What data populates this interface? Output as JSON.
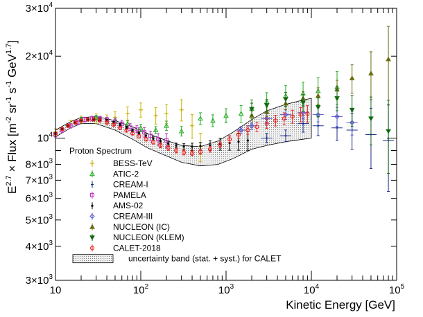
{
  "chart_data": {
    "type": "scatter",
    "title": "",
    "xlabel": "Kinetic Energy [GeV]",
    "ylabel_text": {
      "prefix": "E",
      "prefix_sup": "2.7",
      "mid": " × Flux [m",
      "m_sup": "-2",
      "sr": " sr",
      "sr_sup": "-1",
      "s": " s",
      "s_sup": "-1",
      "gev": " GeV",
      "gev_sup": "1.7",
      "suffix": "]"
    },
    "x_scale": "log",
    "y_scale": "log",
    "xlim": [
      10,
      100000
    ],
    "ylim": [
      3000,
      30000
    ],
    "x_major_ticks": [
      {
        "value": 10,
        "base": "10",
        "exp": ""
      },
      {
        "value": 100,
        "base": "10",
        "exp": "2"
      },
      {
        "value": 1000,
        "base": "10",
        "exp": "3"
      },
      {
        "value": 10000,
        "base": "10",
        "exp": "4"
      },
      {
        "value": 100000,
        "base": "10",
        "exp": "5"
      }
    ],
    "y_major_ticks": [
      {
        "value": 3000,
        "base": "3×10",
        "exp": "3"
      },
      {
        "value": 4000,
        "base": "4×10",
        "exp": "3"
      },
      {
        "value": 5000,
        "base": "5×10",
        "exp": "3"
      },
      {
        "value": 6000,
        "base": "6×10",
        "exp": "3"
      },
      {
        "value": 7000,
        "base": "7×10",
        "exp": "3"
      },
      {
        "value": 8000,
        "base": "8×10",
        "exp": "3"
      },
      {
        "value": 10000,
        "base": "10",
        "exp": "4"
      },
      {
        "value": 20000,
        "base": "2×10",
        "exp": "4"
      },
      {
        "value": 30000,
        "base": "3×10",
        "exp": "4"
      }
    ],
    "legend": {
      "title": "Proton Spectrum",
      "placement": "lower-left",
      "band_label": "uncertainty band (stat. + syst.) for CALET"
    },
    "band": {
      "name": "uncertainty band (stat. + syst.) for CALET",
      "x": [
        10,
        15,
        20,
        30,
        50,
        80,
        120,
        200,
        300,
        500,
        800,
        1200,
        2000,
        3000,
        5000,
        8000,
        10000
      ],
      "low": [
        10100,
        10900,
        11300,
        11300,
        10700,
        9900,
        9200,
        8600,
        8150,
        7900,
        8000,
        8400,
        9100,
        9400,
        9700,
        9900,
        10000
      ],
      "high": [
        10700,
        11500,
        11900,
        12000,
        11600,
        11000,
        10400,
        9800,
        9400,
        9300,
        9750,
        10500,
        11700,
        12600,
        13300,
        13800,
        14000
      ]
    },
    "series": [
      {
        "name": "BESS-TeV",
        "color": "#c8b400",
        "marker": "plus",
        "x": [
          10,
          15,
          20,
          30,
          40,
          50,
          70,
          100,
          150,
          200,
          300,
          400,
          500
        ],
        "y": [
          10500,
          11300,
          11700,
          11800,
          11700,
          11900,
          12300,
          12700,
          12100,
          12300,
          12700,
          11100,
          9300
        ],
        "err": [
          0.03,
          0.03,
          0.03,
          0.04,
          0.04,
          0.05,
          0.06,
          0.06,
          0.07,
          0.08,
          0.09,
          0.1,
          0.12
        ]
      },
      {
        "name": "ATIC-2",
        "color": "#22aa22",
        "marker": "triangle-open",
        "x": [
          20,
          30,
          50,
          70,
          100,
          150,
          200,
          300,
          500,
          700,
          1000,
          1500,
          2000,
          3000,
          5000,
          8000,
          12000,
          20000
        ],
        "y": [
          11700,
          11900,
          11600,
          11300,
          10900,
          10700,
          11100,
          10600,
          11800,
          11600,
          12100,
          12300,
          12800,
          13600,
          14300,
          14600,
          14900,
          15400
        ],
        "err": [
          0.02,
          0.02,
          0.02,
          0.03,
          0.03,
          0.03,
          0.04,
          0.04,
          0.05,
          0.05,
          0.06,
          0.07,
          0.08,
          0.08,
          0.09,
          0.1,
          0.12,
          0.14
        ]
      },
      {
        "name": "CREAM-I",
        "color": "#1a2a8a",
        "marker": "plus-small",
        "x": [
          3000,
          5000,
          8000,
          12000,
          20000,
          30000,
          50000,
          80000
        ],
        "y": [
          10000,
          10200,
          11300,
          11100,
          10900,
          10700,
          10300,
          9800
        ],
        "err": [
          0.04,
          0.05,
          0.07,
          0.08,
          0.1,
          0.15,
          0.25,
          0.35
        ]
      },
      {
        "name": "PAMELA",
        "color": "#c033c0",
        "marker": "square-open",
        "x": [
          10,
          12,
          15,
          18,
          22,
          27,
          33,
          40,
          50,
          60,
          75,
          90,
          110,
          130,
          160,
          200
        ],
        "y": [
          10300,
          10700,
          11100,
          11400,
          11700,
          11800,
          11800,
          11700,
          11500,
          11300,
          11000,
          10800,
          10500,
          10200,
          9900,
          9800
        ],
        "err": [
          0.02,
          0.02,
          0.02,
          0.02,
          0.02,
          0.02,
          0.02,
          0.02,
          0.03,
          0.03,
          0.03,
          0.03,
          0.04,
          0.04,
          0.05,
          0.06
        ]
      },
      {
        "name": "AMS-02",
        "color": "#000000",
        "marker": "dot",
        "x": [
          10,
          12,
          14,
          17,
          20,
          24,
          28,
          33,
          40,
          48,
          57,
          68,
          80,
          95,
          115,
          140,
          170,
          210,
          260,
          320,
          400,
          500,
          650,
          850,
          1100,
          1400,
          1800
        ],
        "y": [
          10400,
          10800,
          11100,
          11400,
          11600,
          11700,
          11750,
          11700,
          11600,
          11400,
          11200,
          10950,
          10700,
          10450,
          10200,
          9950,
          9750,
          9550,
          9400,
          9300,
          9300,
          9350,
          9400,
          9500,
          9600,
          9700,
          9800
        ],
        "err": [
          0.01,
          0.01,
          0.01,
          0.01,
          0.01,
          0.01,
          0.01,
          0.01,
          0.01,
          0.01,
          0.01,
          0.01,
          0.01,
          0.01,
          0.015,
          0.015,
          0.02,
          0.02,
          0.02,
          0.025,
          0.03,
          0.03,
          0.04,
          0.05,
          0.06,
          0.07,
          0.08
        ]
      },
      {
        "name": "CREAM-III",
        "color": "#5555cc",
        "marker": "diamond-open",
        "x": [
          1500,
          2000,
          3000,
          5000,
          8000,
          12000,
          20000,
          30000
        ],
        "y": [
          10700,
          11100,
          11800,
          12200,
          12400,
          12200,
          12000,
          11400
        ],
        "err": [
          0.03,
          0.03,
          0.04,
          0.04,
          0.05,
          0.06,
          0.08,
          0.1
        ]
      },
      {
        "name": "NUCLEON (IC)",
        "color": "#6b6b10",
        "marker": "triangle",
        "x": [
          2000,
          3000,
          5000,
          8000,
          12000,
          20000,
          30000,
          50000,
          80000
        ],
        "y": [
          12100,
          12500,
          13400,
          14000,
          14300,
          15100,
          16600,
          17300,
          19500
        ],
        "err": [
          0.04,
          0.04,
          0.05,
          0.06,
          0.07,
          0.08,
          0.12,
          0.2,
          0.32
        ]
      },
      {
        "name": "NUCLEON (KLEM)",
        "color": "#0f6a0f",
        "marker": "triangle-down",
        "x": [
          2000,
          3000,
          5000,
          8000,
          12000,
          20000,
          30000,
          50000,
          80000
        ],
        "y": [
          12800,
          13200,
          13900,
          13500,
          13000,
          14000,
          12700,
          11800,
          10600
        ],
        "err": [
          0.05,
          0.05,
          0.06,
          0.07,
          0.08,
          0.1,
          0.13,
          0.2,
          0.3
        ]
      },
      {
        "name": "CALET-2018",
        "color": "#e8201c",
        "marker": "circle-open",
        "x": [
          10,
          12,
          14,
          17,
          20,
          24,
          28,
          33,
          40,
          48,
          57,
          68,
          80,
          95,
          115,
          140,
          170,
          210,
          260,
          320,
          400,
          500,
          650,
          850,
          1100,
          1400,
          1800,
          2300,
          3000,
          3800,
          4800,
          6000,
          7500,
          9000
        ],
        "y": [
          10400,
          10800,
          11100,
          11400,
          11600,
          11700,
          11700,
          11600,
          11400,
          11200,
          10900,
          10650,
          10400,
          10150,
          9900,
          9650,
          9400,
          9200,
          9000,
          8850,
          8800,
          8900,
          9100,
          9450,
          9900,
          10300,
          10700,
          11000,
          11300,
          11600,
          11800,
          12000,
          12200,
          12300
        ],
        "err": [
          0.01,
          0.01,
          0.01,
          0.01,
          0.01,
          0.01,
          0.01,
          0.01,
          0.01,
          0.01,
          0.01,
          0.01,
          0.01,
          0.015,
          0.015,
          0.015,
          0.02,
          0.02,
          0.02,
          0.02,
          0.02,
          0.02,
          0.025,
          0.025,
          0.03,
          0.03,
          0.035,
          0.04,
          0.04,
          0.045,
          0.05,
          0.055,
          0.06,
          0.07
        ]
      }
    ]
  }
}
